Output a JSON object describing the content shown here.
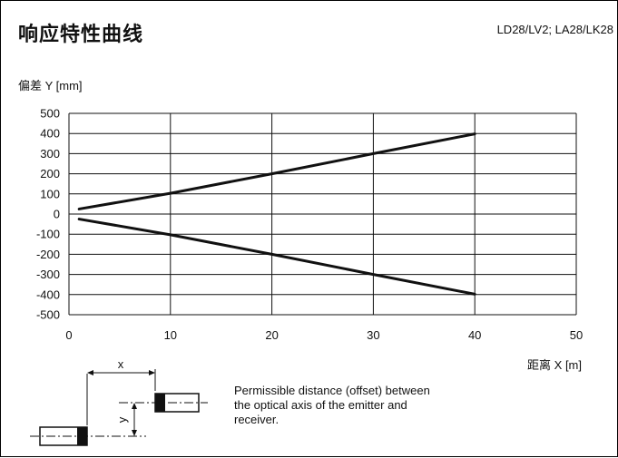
{
  "page": {
    "title": "响应特性曲线",
    "model": "LD28/LV2; LA28/LK28"
  },
  "chart_data": {
    "type": "line",
    "title": "响应特性曲线",
    "xlabel": "距离 X [m]",
    "ylabel": "偏差 Y [mm]",
    "xlim": [
      0,
      50
    ],
    "ylim": [
      -500,
      500
    ],
    "xticks": [
      0,
      10,
      20,
      30,
      40,
      50
    ],
    "yticks": [
      500,
      400,
      300,
      200,
      100,
      0,
      -100,
      -200,
      -300,
      -400,
      -500
    ],
    "grid": true,
    "series": [
      {
        "x": [
          1,
          10,
          20,
          30,
          40
        ],
        "y": [
          25,
          103,
          200,
          300,
          398
        ]
      },
      {
        "x": [
          1,
          10,
          20,
          30,
          40
        ],
        "y": [
          -25,
          -103,
          -200,
          -300,
          -398
        ]
      }
    ]
  },
  "diagram": {
    "x_label": "x",
    "y_label": "y",
    "caption": "Permissible distance (offset) between the optical axis of the emitter and receiver."
  }
}
